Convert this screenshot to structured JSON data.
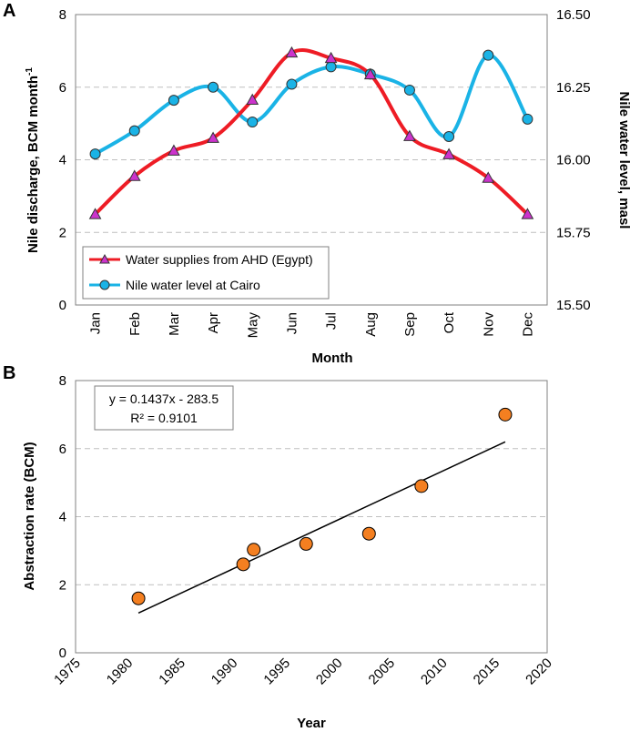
{
  "chart_data": [
    {
      "panel_label": "A",
      "type": "line",
      "categories": [
        "Jan",
        "Feb",
        "Mar",
        "Apr",
        "May",
        "Jun",
        "Jul",
        "Aug",
        "Sep",
        "Oct",
        "Nov",
        "Dec"
      ],
      "xlabel": "Month",
      "ylabel": "Nile discharge, BCM month",
      "ylabel_superscript": "-1",
      "y2label": "Nile water level, masl",
      "ylim": [
        0,
        8
      ],
      "y_ticks": [
        "0",
        "2",
        "4",
        "6",
        "8"
      ],
      "y2lim": [
        15.5,
        16.5
      ],
      "y2_ticks": [
        "15.50",
        "15.75",
        "16.00",
        "16.25",
        "16.50"
      ],
      "grid": "horizontal dashed",
      "legend_position": "bottom-left",
      "series": [
        {
          "name": "Water supplies from AHD (Egypt)",
          "axis": "left",
          "color": "#ee1c25",
          "marker": "triangle",
          "marker_color": "#cc33cc",
          "values": [
            2.5,
            3.55,
            4.25,
            4.6,
            5.65,
            6.95,
            6.8,
            6.35,
            4.65,
            4.15,
            3.5,
            2.5
          ]
        },
        {
          "name": "Nile water level at Cairo",
          "axis": "right",
          "color": "#1ab3e6",
          "marker": "circle",
          "marker_color": "#1ab3e6",
          "values": [
            16.02,
            16.1,
            16.205,
            16.25,
            16.13,
            16.26,
            16.32,
            16.295,
            16.24,
            16.08,
            16.36,
            16.14
          ]
        }
      ]
    },
    {
      "panel_label": "B",
      "type": "scatter",
      "xlabel": "Year",
      "ylabel": "Abstraction rate (BCM)",
      "xlim": [
        1975,
        2020
      ],
      "x_ticks": [
        "1975",
        "1980",
        "1985",
        "1990",
        "1995",
        "2000",
        "2005",
        "2010",
        "2015",
        "2020"
      ],
      "ylim": [
        0,
        8
      ],
      "y_ticks": [
        "0",
        "2",
        "4",
        "6",
        "8"
      ],
      "grid": "horizontal dashed",
      "marker_color": "#f47f20",
      "points": [
        {
          "x": 1981,
          "y": 1.6
        },
        {
          "x": 1991,
          "y": 2.6
        },
        {
          "x": 1992,
          "y": 3.03
        },
        {
          "x": 1997,
          "y": 3.2
        },
        {
          "x": 2003,
          "y": 3.5
        },
        {
          "x": 2008,
          "y": 4.9
        },
        {
          "x": 2016,
          "y": 7.0
        }
      ],
      "trendline": {
        "slope": 0.1437,
        "intercept": -283.5,
        "x_start": 1981,
        "x_end": 2016
      },
      "equation_lines": [
        "y = 0.1437x - 283.5",
        "R² = 0.9101"
      ]
    }
  ]
}
